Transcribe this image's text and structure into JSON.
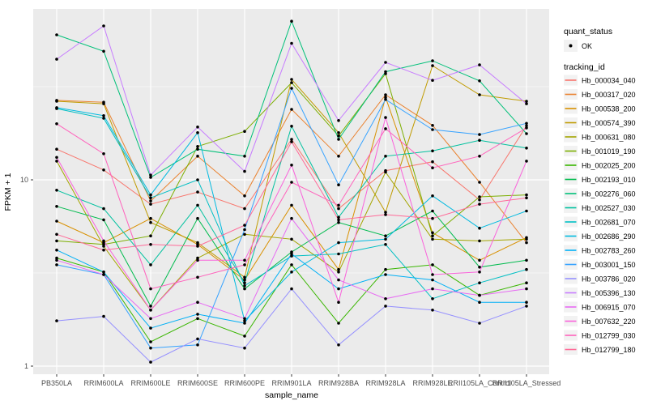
{
  "chart_data": {
    "type": "line",
    "title": "",
    "xlabel": "sample_name",
    "ylabel": "FPKM + 1",
    "yscale": "log10",
    "ytick_values": [
      1,
      10
    ],
    "ytick_labels": [
      "1",
      "10"
    ],
    "yminor_values": [
      3.1623,
      31.623
    ],
    "ylim": [
      0.9,
      80
    ],
    "grid": true,
    "legend_position": "right",
    "panel_background": "#EBEBEB",
    "gridline_color": "#FFFFFF",
    "point_color": "#000000",
    "categories": [
      "PB350LA",
      "RRIM600LA",
      "RRIM600LE",
      "RRIM600SE",
      "RRIM600PE",
      "RRIM901LA",
      "RRIM928BA",
      "RRIM928LA",
      "RRIM928LE",
      "RRII105LA_Control",
      "RRII105LA_Stressed"
    ],
    "series": [
      {
        "name": "Hb_000034_040",
        "color": "#F8766D",
        "values": [
          14.6,
          11.3,
          7.4,
          8.6,
          7.0,
          16.5,
          7.0,
          11.2,
          12.5,
          7.8,
          19.5
        ]
      },
      {
        "name": "Hb_000317_020",
        "color": "#EA8331",
        "values": [
          26.7,
          26.1,
          7.7,
          13.4,
          8.2,
          23.9,
          13.4,
          28.6,
          19.6,
          9.7,
          4.6
        ]
      },
      {
        "name": "Hb_000538_200",
        "color": "#D89000",
        "values": [
          6.0,
          4.6,
          6.2,
          4.5,
          2.9,
          7.3,
          3.3,
          27.7,
          5.2,
          3.7,
          4.9
        ]
      },
      {
        "name": "Hb_000574_390",
        "color": "#C09B00",
        "values": [
          26.4,
          25.6,
          5.9,
          4.6,
          3.0,
          34.6,
          17.9,
          6.7,
          41.0,
          28.6,
          26.4
        ]
      },
      {
        "name": "Hb_000631_080",
        "color": "#A3A500",
        "values": [
          12.6,
          4.4,
          2.0,
          3.8,
          5.1,
          4.8,
          3.2,
          11.0,
          4.8,
          4.7,
          4.8
        ]
      },
      {
        "name": "Hb_001019_190",
        "color": "#7CAE00",
        "values": [
          4.7,
          4.5,
          5.0,
          15.1,
          18.2,
          33.2,
          17.2,
          37.1,
          5.0,
          8.1,
          8.3
        ]
      },
      {
        "name": "Hb_002025_200",
        "color": "#39B600",
        "values": [
          3.8,
          3.2,
          1.35,
          1.8,
          1.45,
          3.5,
          1.7,
          3.3,
          3.5,
          2.4,
          2.8
        ]
      },
      {
        "name": "Hb_002193_010",
        "color": "#00BB4E",
        "values": [
          7.2,
          6.1,
          2.1,
          6.2,
          2.6,
          4.1,
          5.9,
          5.0,
          6.8,
          3.4,
          3.7
        ]
      },
      {
        "name": "Hb_002276_060",
        "color": "#00C079",
        "values": [
          60.0,
          49.0,
          10.3,
          14.6,
          13.4,
          71.0,
          16.5,
          38.0,
          43.5,
          34.0,
          17.7
        ]
      },
      {
        "name": "Hb_002527_030",
        "color": "#00C19F",
        "values": [
          8.8,
          7.0,
          3.5,
          7.3,
          2.8,
          19.4,
          6.3,
          13.4,
          14.3,
          16.3,
          14.8
        ]
      },
      {
        "name": "Hb_002681_070",
        "color": "#00BFC4",
        "values": [
          24.1,
          21.4,
          8.0,
          10.0,
          2.7,
          3.9,
          4.0,
          4.5,
          2.3,
          2.8,
          3.3
        ]
      },
      {
        "name": "Hb_002686_290",
        "color": "#00BAE0",
        "values": [
          24.4,
          22.1,
          8.3,
          17.9,
          1.75,
          3.2,
          4.6,
          4.8,
          8.2,
          5.5,
          6.8
        ]
      },
      {
        "name": "Hb_002783_260",
        "color": "#00B0F6",
        "values": [
          4.2,
          3.2,
          1.6,
          1.9,
          1.7,
          4.0,
          2.6,
          3.1,
          2.9,
          2.2,
          2.2
        ]
      },
      {
        "name": "Hb_003001_150",
        "color": "#35A2FF",
        "values": [
          3.5,
          3.1,
          1.25,
          1.3,
          5.4,
          31.0,
          9.4,
          27.0,
          18.6,
          17.5,
          20.1
        ]
      },
      {
        "name": "Hb_003786_020",
        "color": "#9590FF",
        "values": [
          1.75,
          1.85,
          1.05,
          1.4,
          1.25,
          2.6,
          1.3,
          2.1,
          2.0,
          1.7,
          2.1
        ]
      },
      {
        "name": "Hb_005396_130",
        "color": "#C77CFF",
        "values": [
          44.4,
          67.0,
          10.6,
          19.2,
          11.1,
          54.0,
          20.8,
          42.7,
          34.2,
          41.4,
          25.6
        ]
      },
      {
        "name": "Hb_006915_070",
        "color": "#E76BF3",
        "values": [
          3.7,
          3.1,
          1.8,
          2.2,
          1.8,
          6.2,
          2.9,
          2.3,
          2.6,
          2.4,
          2.6
        ]
      },
      {
        "name": "Hb_007632_220",
        "color": "#FA62DB",
        "values": [
          13.2,
          4.7,
          2.0,
          3.7,
          3.7,
          12.0,
          2.2,
          21.6,
          3.1,
          3.2,
          12.6
        ]
      },
      {
        "name": "Hb_012799_030",
        "color": "#FF62BC",
        "values": [
          20.0,
          13.8,
          2.6,
          3.0,
          3.5,
          9.7,
          7.3,
          18.8,
          11.6,
          13.4,
          19.0
        ]
      },
      {
        "name": "Hb_012799_180",
        "color": "#FF6A98",
        "values": [
          5.1,
          4.2,
          4.5,
          4.4,
          5.7,
          16.0,
          6.1,
          6.5,
          6.2,
          7.4,
          8.0
        ]
      }
    ]
  },
  "legend": {
    "quant_status": {
      "title": "quant_status",
      "items": [
        {
          "label": "OK",
          "marker": "point"
        }
      ]
    },
    "tracking_id": {
      "title": "tracking_id"
    }
  }
}
